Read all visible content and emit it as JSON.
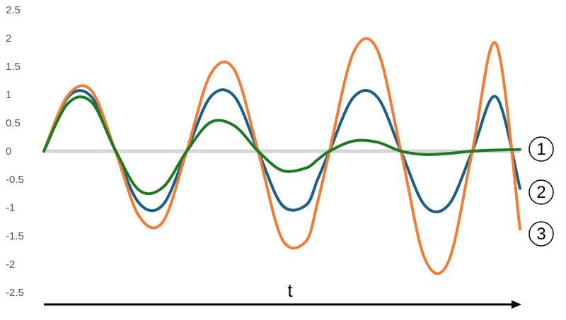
{
  "chart_data": {
    "type": "line",
    "ylim": [
      -2.5,
      2.5
    ],
    "yticks": [
      "2.5",
      "2",
      "1.5",
      "1",
      "0.5",
      "0",
      "-0.5",
      "-1",
      "-1.5",
      "-2",
      "-2.5"
    ],
    "xlabel": "t",
    "xlim": [
      0,
      10
    ],
    "grid": false,
    "legend": "none",
    "series": [
      {
        "marker": "①",
        "color": "#1e7a22",
        "x": [
          0,
          0.5,
          1,
          1.5,
          2,
          2.5,
          3,
          3.5,
          4,
          4.5,
          5,
          5.5,
          5.75,
          6,
          6.5,
          7,
          7.5,
          8,
          8.5,
          9,
          9.5,
          10
        ],
        "values": [
          0,
          0.84,
          0.87,
          0.02,
          -0.69,
          -0.64,
          0.0,
          0.51,
          0.45,
          0.0,
          -0.34,
          -0.3,
          -0.15,
          0.0,
          0.18,
          0.16,
          0.0,
          -0.06,
          -0.04,
          0.0,
          0.02,
          0.03
        ]
      },
      {
        "marker": "②",
        "color": "#1b5e86",
        "x": [
          0,
          0.5,
          1,
          1.5,
          2,
          2.5,
          3,
          3.5,
          4,
          4.5,
          5,
          5.5,
          5.75,
          6,
          6.5,
          7,
          7.5,
          8,
          8.5,
          9,
          9.5,
          10
        ],
        "values": [
          0,
          0.95,
          0.96,
          0.01,
          -0.92,
          -0.95,
          0.0,
          0.96,
          0.97,
          0.0,
          -0.95,
          -0.96,
          -0.5,
          0.0,
          0.95,
          0.96,
          0.0,
          -0.96,
          -0.95,
          0.0,
          0.96,
          -0.66
        ]
      },
      {
        "marker": "③",
        "color": "#ef7d37",
        "x": [
          0,
          0.5,
          1,
          1.5,
          2,
          2.5,
          3,
          3.5,
          4,
          4.5,
          5,
          5.5,
          5.75,
          6,
          6.5,
          7,
          7.5,
          8,
          8.5,
          9,
          9.5,
          10
        ],
        "values": [
          0,
          0.98,
          1.07,
          0.01,
          -1.15,
          -1.25,
          0.0,
          1.36,
          1.44,
          0.0,
          -1.55,
          -1.6,
          -0.9,
          0.0,
          1.74,
          1.8,
          0.0,
          -1.9,
          -1.95,
          0.0,
          1.9,
          -1.38
        ]
      }
    ]
  },
  "colors": {
    "zero_line": "#d4d4d4",
    "x_axis_arrow": "#000000"
  }
}
